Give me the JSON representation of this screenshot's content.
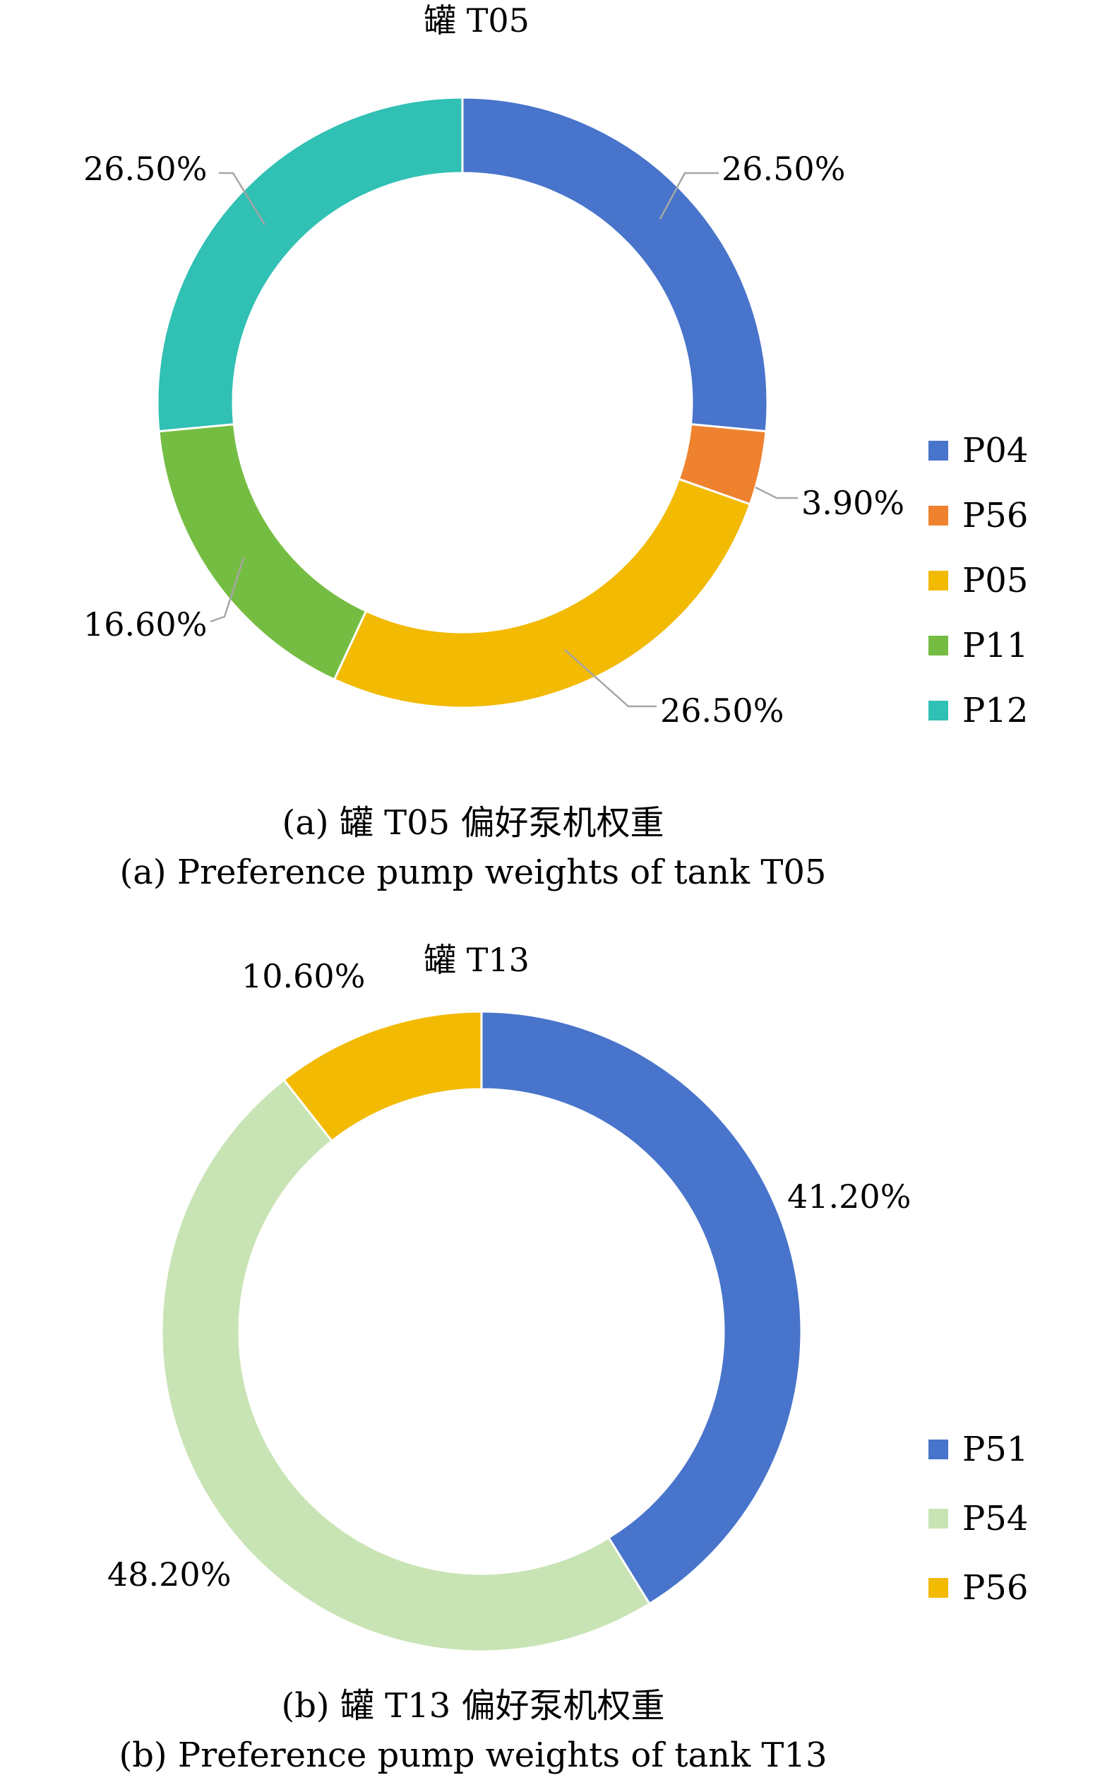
{
  "chart_data": [
    {
      "type": "pie",
      "donut": true,
      "title": "罐 T05",
      "categories": [
        "P04",
        "P56",
        "P05",
        "P11",
        "P12"
      ],
      "values": [
        26.5,
        3.9,
        26.5,
        16.6,
        26.5
      ],
      "value_labels": [
        "26.50%",
        "3.90%",
        "26.50%",
        "16.60%",
        "26.50%"
      ],
      "colors": [
        "#4874cb",
        "#ee822f",
        "#f2ba02",
        "#75bd42",
        "#30c0b4"
      ],
      "legend_position": "right",
      "caption_cn": "(a) 罐 T05 偏好泵机权重",
      "caption_en": "(a) Preference pump weights of tank T05"
    },
    {
      "type": "pie",
      "donut": true,
      "title": "罐 T13",
      "categories": [
        "P51",
        "P54",
        "P56"
      ],
      "values": [
        41.2,
        48.2,
        10.6
      ],
      "value_labels": [
        "41.20%",
        "48.20%",
        "10.60%"
      ],
      "colors": [
        "#4874cb",
        "#c9e4b4",
        "#f2ba02"
      ],
      "legend_position": "right",
      "caption_cn": "(b) 罐 T13 偏好泵机权重",
      "caption_en": "(b) Preference pump weights of tank T13"
    }
  ]
}
